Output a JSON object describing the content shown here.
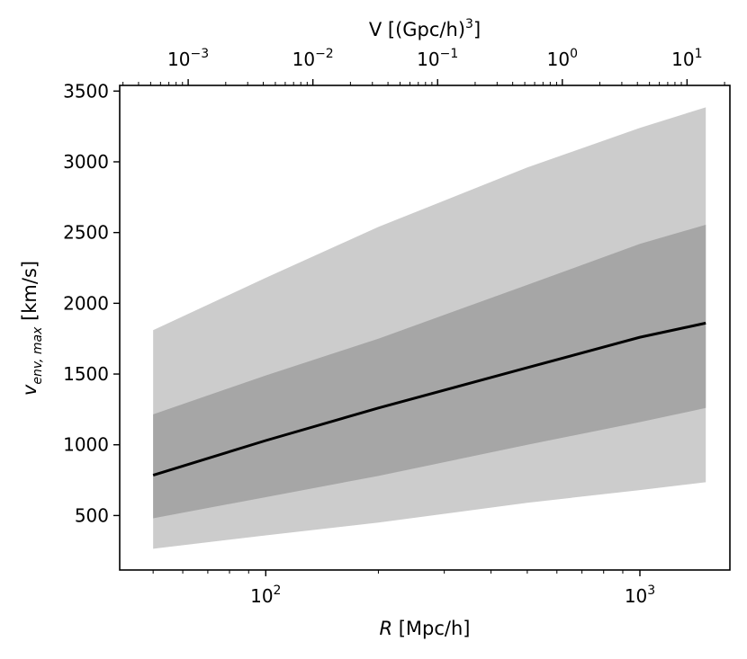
{
  "chart_data": {
    "type": "line",
    "colors": {
      "line": "#000000",
      "band_1sigma": "#a6a6a6",
      "band_2sigma": "#cccccc",
      "axes": "#000000",
      "background": "#ffffff"
    },
    "x_axis": {
      "label_symbol": "R",
      "label_unit": " [Mpc/h]",
      "scale": "log",
      "range": [
        40.7,
        1740
      ],
      "major_ticks": [
        100,
        1000
      ],
      "tick_labels": [
        "10",
        "10"
      ],
      "tick_label_exponents": [
        "2",
        "3"
      ]
    },
    "y_axis": {
      "label_symbol": "v",
      "label_subscript": "env, max",
      "label_unit": " [km/s]",
      "scale": "linear",
      "range": [
        115,
        3540
      ],
      "major_ticks": [
        500,
        1000,
        1500,
        2000,
        2500,
        3000,
        3500
      ],
      "tick_labels": [
        "500",
        "1000",
        "1500",
        "2000",
        "2500",
        "3000",
        "3500"
      ]
    },
    "top_axis": {
      "label_prefix": "V [(Gpc/h)",
      "label_exponent": "3",
      "label_suffix": "]",
      "scale": "log",
      "major_ticks": [
        0.001,
        0.01,
        0.1,
        1,
        10
      ],
      "tick_labels": [
        "10",
        "10",
        "10",
        "10",
        "10"
      ],
      "tick_label_exponents": [
        "−3",
        "−2",
        "−1",
        "0",
        "1"
      ]
    },
    "x": [
      50,
      100,
      200,
      500,
      1000,
      1500
    ],
    "series": [
      {
        "values": [
          785,
          1030,
          1260,
          1545,
          1760,
          1860
        ]
      },
      {
        "band": "1-sigma",
        "lower": [
          480,
          630,
          780,
          1000,
          1160,
          1260
        ],
        "upper": [
          1215,
          1490,
          1750,
          2130,
          2420,
          2555
        ]
      },
      {
        "band": "2-sigma",
        "lower": [
          265,
          360,
          450,
          590,
          680,
          735
        ],
        "upper": [
          1810,
          2180,
          2540,
          2960,
          3240,
          3385
        ]
      }
    ]
  }
}
